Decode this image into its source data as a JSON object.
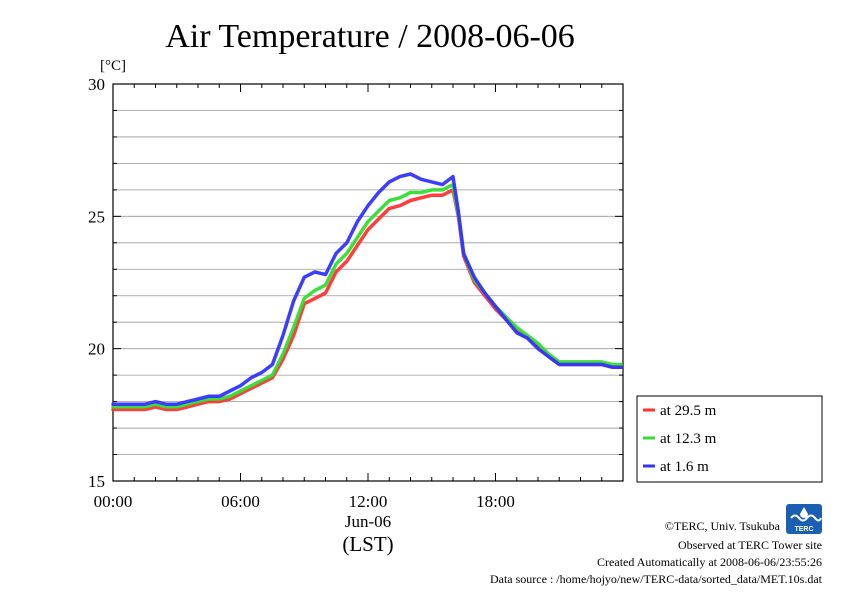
{
  "chart_data": {
    "type": "line",
    "title": "Air Temperature / 2008-06-06",
    "ylabel": "[°C]",
    "ylim": [
      15,
      30
    ],
    "yticks": [
      15,
      20,
      25,
      30
    ],
    "xlim": [
      "00:00",
      "24:00"
    ],
    "xticks": [
      "00:00",
      "06:00",
      "12:00",
      "18:00"
    ],
    "x_date_label": "Jun-06",
    "x_axis_label": "(LST)",
    "grid": true,
    "legend_position": "right",
    "x": [
      "00:00",
      "00:30",
      "01:00",
      "01:30",
      "02:00",
      "02:30",
      "03:00",
      "03:30",
      "04:00",
      "04:30",
      "05:00",
      "05:30",
      "06:00",
      "06:30",
      "07:00",
      "07:30",
      "08:00",
      "08:30",
      "09:00",
      "09:30",
      "10:00",
      "10:30",
      "11:00",
      "11:30",
      "12:00",
      "12:30",
      "13:00",
      "13:30",
      "14:00",
      "14:30",
      "15:00",
      "15:30",
      "16:00",
      "16:15",
      "16:30",
      "17:00",
      "17:30",
      "18:00",
      "18:30",
      "19:00",
      "19:30",
      "20:00",
      "20:30",
      "21:00",
      "21:30",
      "22:00",
      "22:30",
      "23:00",
      "23:30",
      "23:55"
    ],
    "series": [
      {
        "name": "at 29.5 m",
        "color": "#ff3333",
        "values": [
          17.7,
          17.7,
          17.7,
          17.7,
          17.8,
          17.7,
          17.7,
          17.8,
          17.9,
          18.0,
          18.0,
          18.1,
          18.3,
          18.5,
          18.7,
          18.9,
          19.6,
          20.5,
          21.7,
          21.9,
          22.1,
          22.9,
          23.3,
          23.9,
          24.5,
          24.9,
          25.3,
          25.4,
          25.6,
          25.7,
          25.8,
          25.8,
          26.0,
          25.0,
          23.5,
          22.5,
          22.0,
          21.5,
          21.1,
          20.7,
          20.4,
          20.1,
          19.7,
          19.4,
          19.4,
          19.4,
          19.4,
          19.4,
          19.3,
          19.3
        ]
      },
      {
        "name": "at 12.3 m",
        "color": "#33dd33",
        "values": [
          17.8,
          17.8,
          17.8,
          17.8,
          17.9,
          17.8,
          17.8,
          17.9,
          18.0,
          18.1,
          18.1,
          18.2,
          18.4,
          18.6,
          18.8,
          19.0,
          19.8,
          20.8,
          21.9,
          22.2,
          22.4,
          23.2,
          23.6,
          24.2,
          24.8,
          25.2,
          25.6,
          25.7,
          25.9,
          25.9,
          26.0,
          26.0,
          26.2,
          25.1,
          23.6,
          22.6,
          22.1,
          21.6,
          21.2,
          20.8,
          20.5,
          20.2,
          19.8,
          19.5,
          19.5,
          19.5,
          19.5,
          19.5,
          19.4,
          19.4
        ]
      },
      {
        "name": "at 1.6 m",
        "color": "#3333ff",
        "values": [
          17.9,
          17.9,
          17.9,
          17.9,
          18.0,
          17.9,
          17.9,
          18.0,
          18.1,
          18.2,
          18.2,
          18.4,
          18.6,
          18.9,
          19.1,
          19.4,
          20.5,
          21.8,
          22.7,
          22.9,
          22.8,
          23.6,
          24.0,
          24.8,
          25.4,
          25.9,
          26.3,
          26.5,
          26.6,
          26.4,
          26.3,
          26.2,
          26.5,
          25.2,
          23.6,
          22.7,
          22.1,
          21.6,
          21.1,
          20.6,
          20.4,
          20.0,
          19.7,
          19.4,
          19.4,
          19.4,
          19.4,
          19.4,
          19.3,
          19.3
        ]
      }
    ]
  },
  "credits": {
    "copyright": "©TERC, Univ. Tsukuba",
    "site": "Observed at TERC Tower site",
    "created": "Created Automatically at 2008-06-06/23:55:26",
    "source": "Data source : /home/hojyo/new/TERC-data/sorted_data/MET.10s.dat",
    "logo_text": "TERC"
  }
}
